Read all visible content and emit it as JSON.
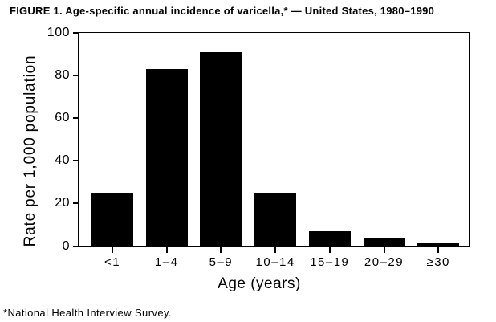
{
  "chart_data": {
    "type": "bar",
    "title": "FIGURE 1. Age-specific annual incidence of varicella,* — United States, 1980–1990",
    "categories": [
      "<1",
      "1–4",
      "5–9",
      "10–14",
      "15–19",
      "20–29",
      "≥30"
    ],
    "values": [
      25,
      83,
      91,
      25,
      7,
      4,
      1.5
    ],
    "xlabel": "Age (years)",
    "ylabel": "Rate per 1,000 population",
    "ylim": [
      0,
      100
    ],
    "yticks": [
      0,
      20,
      40,
      60,
      80,
      100
    ],
    "grid": false,
    "legend": false,
    "bar_color": "#000000",
    "background_color": "#ffffff",
    "footnote": "*National Health Interview Survey."
  }
}
